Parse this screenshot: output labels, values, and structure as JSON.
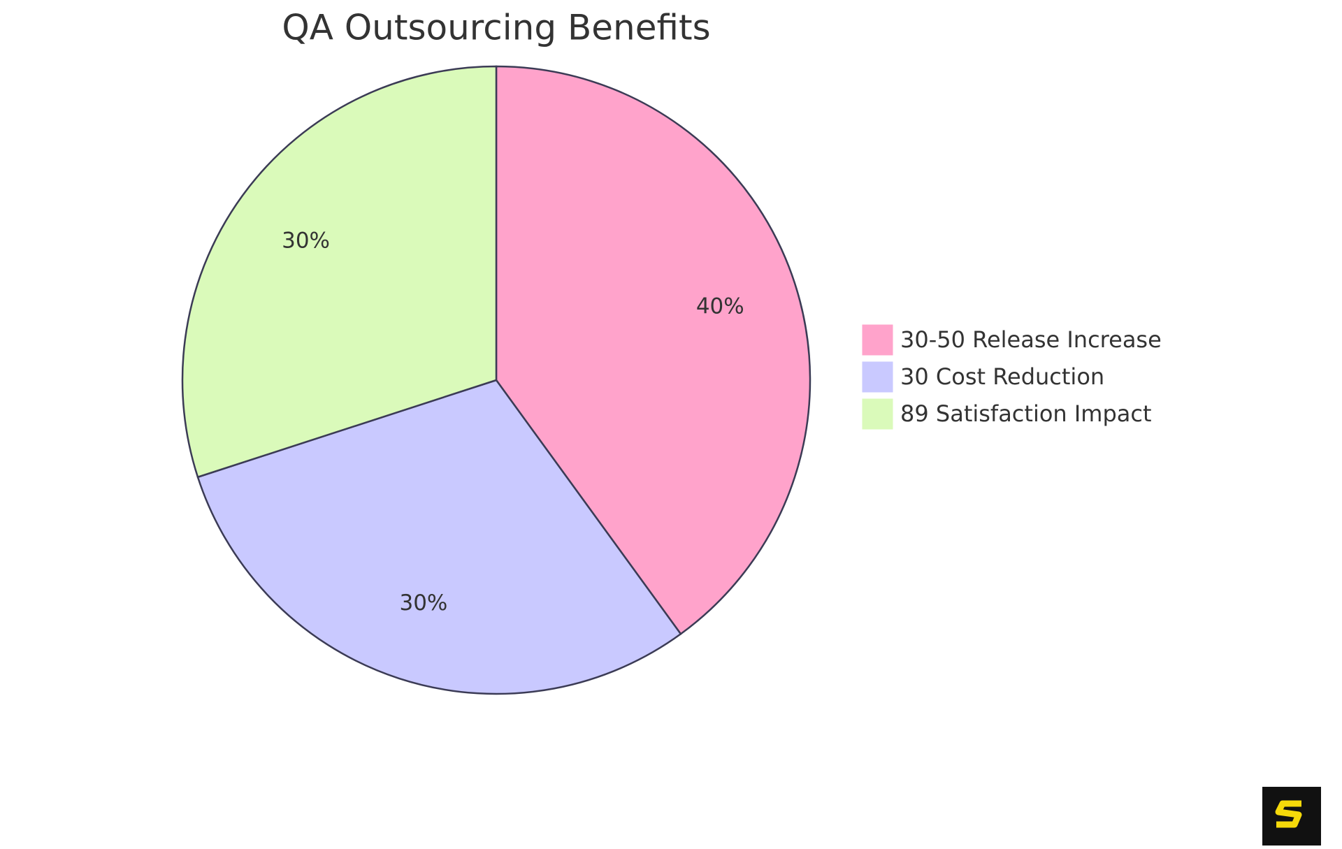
{
  "chart_data": {
    "type": "pie",
    "title": "QA Outsourcing Benefits",
    "categories": [
      "30-50 Release Increase",
      "30 Cost Reduction",
      "89 Satisfaction Impact"
    ],
    "values": [
      40,
      30,
      30
    ],
    "value_labels": [
      "40%",
      "30%",
      "30%"
    ],
    "colors": [
      "#ffa3cb",
      "#c9c9ff",
      "#dafaba"
    ],
    "legend": "right"
  }
}
